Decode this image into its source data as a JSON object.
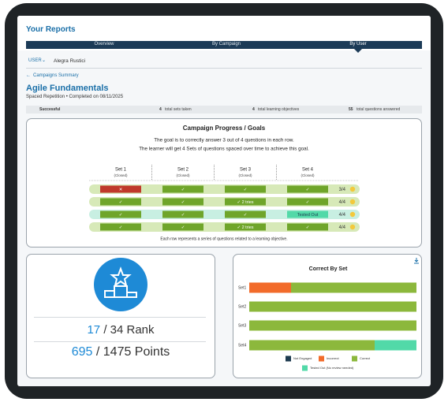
{
  "header": {
    "title": "Your Reports"
  },
  "tabs": [
    "Overview",
    "By Campaign",
    "By User"
  ],
  "user": {
    "label": "USER",
    "name": "Alegra Rustici"
  },
  "back_link": "Campaigns Summary",
  "campaign": {
    "title": "Agile Fundamentals",
    "subtitle": "Spaced Repetition • Completed on 08/11/2025"
  },
  "stats": [
    {
      "value": "Successful"
    },
    {
      "value": "4",
      "label": "total sets taken"
    },
    {
      "value": "4",
      "label": "total learning objectives"
    },
    {
      "value": "55",
      "label": "total questions answered"
    }
  ],
  "progress": {
    "title": "Campaign Progress / Goals",
    "lines": [
      "The goal is to correctly answer 3 out of 4 questions in each row.",
      "The learner will get 4 Sets of questions spaced over time to achieve this goal."
    ],
    "sets": [
      {
        "name": "Set 1",
        "status": "(Closed)"
      },
      {
        "name": "Set 2",
        "status": "(Closed)"
      },
      {
        "name": "Set 3",
        "status": "(Closed)"
      },
      {
        "name": "Set 4",
        "status": "(Closed)"
      }
    ],
    "rows": [
      {
        "cells": [
          "✕",
          "✓",
          "✓",
          "✓"
        ],
        "score": "3/4"
      },
      {
        "cells": [
          "✓",
          "✓",
          "✓ 2 tries",
          "✓"
        ],
        "score": "4/4"
      },
      {
        "cells": [
          "✓",
          "✓",
          "✓",
          "Tested Out"
        ],
        "score": "4/4"
      },
      {
        "cells": [
          "✓",
          "✓",
          "✓ 2 tries",
          "✓"
        ],
        "score": "4/4"
      }
    ],
    "footnote": "Each row represents a series of questions related to a learning objective."
  },
  "rank": {
    "value": 17,
    "total": "/ 34 Rank"
  },
  "points": {
    "value": 695,
    "total": "/ 1475 Points"
  },
  "chart_data": {
    "type": "bar",
    "orientation": "horizontal",
    "stacked": true,
    "title": "Correct By Set",
    "categories": [
      "Set1",
      "Set2",
      "Set3",
      "Set4"
    ],
    "series": [
      {
        "name": "Not Engaged",
        "color": "#1d3a4f",
        "values": [
          0,
          0,
          0,
          0
        ]
      },
      {
        "name": "Incorrect",
        "color": "#f26b2a",
        "values": [
          1,
          0,
          0,
          0
        ]
      },
      {
        "name": "Correct",
        "color": "#8cb83c",
        "values": [
          3,
          4,
          4,
          3
        ]
      },
      {
        "name": "Tested Out (No review needed)",
        "color": "#52d9a8",
        "values": [
          0,
          0,
          0,
          1
        ]
      }
    ],
    "xlim": [
      0,
      4
    ]
  }
}
